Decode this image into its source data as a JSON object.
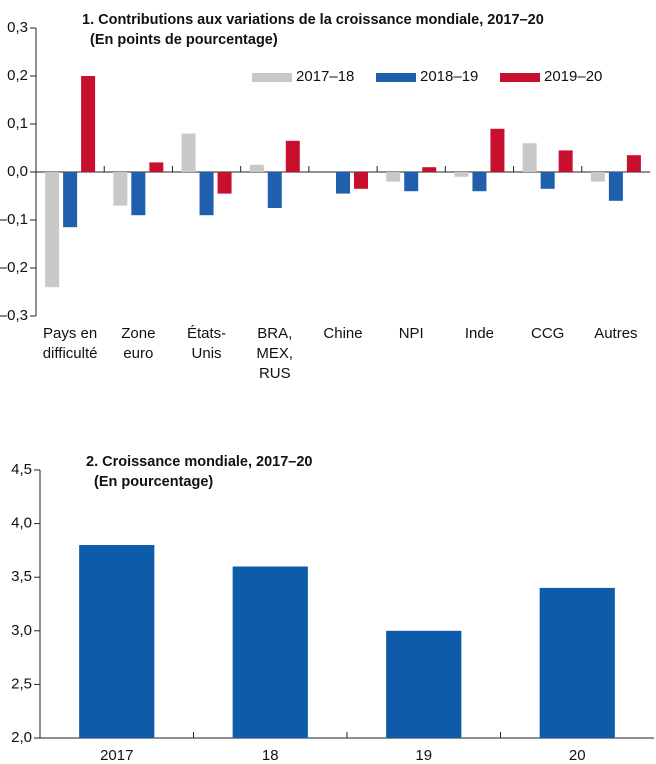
{
  "chart_data": [
    {
      "type": "bar",
      "title": "1. Contributions aux variations de la croissance mondiale, 2017–20",
      "subtitle": "(En points de pourcentage)",
      "categories": [
        "Pays en\ndifficulté",
        "Zone\neuro",
        "États-\nUnis",
        "BRA,\nMEX,\nRUS",
        "Chine",
        "NPI",
        "Inde",
        "CCG",
        "Autres"
      ],
      "series": [
        {
          "name": "2017–18",
          "color": "#c8c8c8",
          "values": [
            -0.24,
            -0.07,
            0.08,
            0.015,
            0.0,
            -0.02,
            -0.01,
            0.06,
            -0.02
          ]
        },
        {
          "name": "2018–19",
          "color": "#1f5fae",
          "values": [
            -0.115,
            -0.09,
            -0.09,
            -0.075,
            -0.045,
            -0.04,
            -0.04,
            -0.035,
            -0.06
          ]
        },
        {
          "name": "2019–20",
          "color": "#c8102e",
          "values": [
            0.2,
            0.02,
            -0.045,
            0.065,
            -0.035,
            0.01,
            0.09,
            0.045,
            0.035
          ]
        }
      ],
      "ylim": [
        -0.3,
        0.3
      ],
      "yticks": [
        {
          "value": -0.3,
          "label": "–0,3"
        },
        {
          "value": -0.2,
          "label": "–0,2"
        },
        {
          "value": -0.1,
          "label": "–0,1"
        },
        {
          "value": 0,
          "label": "0,0"
        },
        {
          "value": 0.1,
          "label": "0,1"
        },
        {
          "value": 0.2,
          "label": "0,2"
        },
        {
          "value": 0.3,
          "label": "0,3"
        }
      ],
      "legend": "top-right"
    },
    {
      "type": "bar",
      "title": "2. Croissance mondiale, 2017–20",
      "subtitle": "(En pourcentage)",
      "categories": [
        "2017",
        "18",
        "19",
        "20"
      ],
      "values": [
        3.8,
        3.6,
        3.0,
        3.4
      ],
      "color": "#0e5ca9",
      "ylim": [
        2.0,
        4.5
      ],
      "yticks": [
        {
          "value": 2.0,
          "label": "2,0"
        },
        {
          "value": 2.5,
          "label": "2,5"
        },
        {
          "value": 3.0,
          "label": "3,0"
        },
        {
          "value": 3.5,
          "label": "3,5"
        },
        {
          "value": 4.0,
          "label": "4,0"
        },
        {
          "value": 4.5,
          "label": "4,5"
        }
      ]
    }
  ]
}
